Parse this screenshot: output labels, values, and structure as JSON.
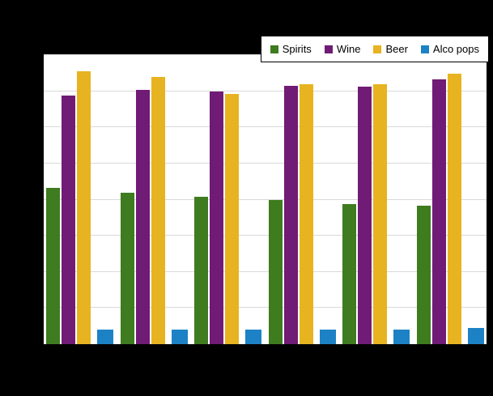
{
  "chart_data": {
    "type": "bar",
    "categories": [
      "",
      "",
      "",
      "",
      "",
      ""
    ],
    "series": [
      {
        "name": "Spirits",
        "color": "#3e7c1f",
        "values": [
          1.08,
          1.05,
          1.02,
          1.0,
          0.97,
          0.96
        ]
      },
      {
        "name": "Wine",
        "color": "#701b75",
        "values": [
          1.72,
          1.76,
          1.75,
          1.79,
          1.78,
          1.83
        ]
      },
      {
        "name": "Beer",
        "color": "#e8b320",
        "values": [
          1.89,
          1.85,
          1.73,
          1.8,
          1.8,
          1.87
        ]
      },
      {
        "name": "Alco pops",
        "color": "#1d82c5",
        "values": [
          0.1,
          0.1,
          0.1,
          0.1,
          0.1,
          0.11
        ]
      }
    ],
    "title": "",
    "xlabel": "",
    "ylabel": "",
    "ylim": [
      0,
      2
    ],
    "gridline_step": 0.25,
    "grid": true,
    "legend_position": "top-right"
  },
  "legend": {
    "items": [
      "Spirits",
      "Wine",
      "Beer",
      "Alco pops"
    ]
  },
  "colors": {
    "background": "#000000",
    "plot_background": "#ffffff",
    "gridline": "#d9d9d9",
    "legend_border": "#000000"
  }
}
